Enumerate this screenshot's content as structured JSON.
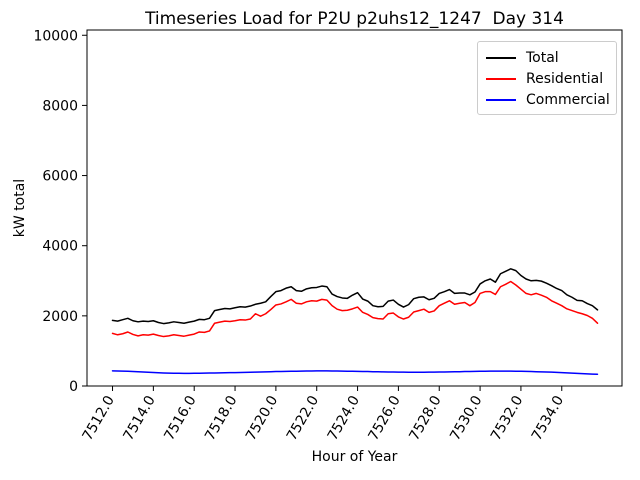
{
  "figure": {
    "title": "Timeseries Load for P2U p2uhs12_1247  Day 314"
  },
  "chart_data": {
    "type": "line",
    "title": "Timeseries Load for P2U p2uhs12_1247  Day 314",
    "xlabel": "Hour of Year",
    "ylabel": "kW total",
    "xlim": [
      7510.75,
      7536.95
    ],
    "ylim": [
      0,
      10150
    ],
    "x_ticks": [
      7512,
      7514,
      7516,
      7518,
      7520,
      7522,
      7524,
      7526,
      7528,
      7530,
      7532,
      7534
    ],
    "x_tick_labels": [
      "7512.0",
      "7514.0",
      "7516.0",
      "7518.0",
      "7520.0",
      "7522.0",
      "7524.0",
      "7526.0",
      "7528.0",
      "7530.0",
      "7532.0",
      "7534.0"
    ],
    "y_ticks": [
      0,
      2000,
      4000,
      6000,
      8000,
      10000
    ],
    "y_tick_labels": [
      "0",
      "2000",
      "4000",
      "6000",
      "8000",
      "10000"
    ],
    "grid": false,
    "legend_position": "upper right",
    "x_start": 7512.0,
    "x_step": 0.25,
    "x_end": 7535.75,
    "legend": {
      "items": [
        {
          "label": "Total",
          "color": "#000000"
        },
        {
          "label": "Residential",
          "color": "#ff0000"
        },
        {
          "label": "Commercial",
          "color": "#0000ff"
        }
      ]
    },
    "series": [
      {
        "name": "Total",
        "color": "#000000",
        "values": [
          1870,
          1850,
          1890,
          1930,
          1860,
          1830,
          1850,
          1840,
          1860,
          1810,
          1780,
          1800,
          1830,
          1810,
          1790,
          1820,
          1850,
          1900,
          1890,
          1930,
          2150,
          2180,
          2210,
          2200,
          2230,
          2260,
          2250,
          2280,
          2330,
          2360,
          2400,
          2550,
          2690,
          2720,
          2790,
          2830,
          2720,
          2700,
          2770,
          2800,
          2810,
          2850,
          2830,
          2620,
          2550,
          2510,
          2500,
          2590,
          2660,
          2480,
          2420,
          2290,
          2260,
          2270,
          2420,
          2450,
          2330,
          2250,
          2320,
          2490,
          2530,
          2540,
          2460,
          2500,
          2640,
          2690,
          2750,
          2640,
          2650,
          2650,
          2600,
          2680,
          2910,
          3000,
          3050,
          2960,
          3200,
          3270,
          3340,
          3290,
          3150,
          3050,
          3000,
          3010,
          2990,
          2930,
          2860,
          2780,
          2720,
          2600,
          2530,
          2440,
          2430,
          2350,
          2290,
          2170
        ]
      },
      {
        "name": "Residential",
        "color": "#ff0000",
        "values": [
          1500,
          1460,
          1490,
          1540,
          1470,
          1430,
          1460,
          1450,
          1480,
          1440,
          1410,
          1430,
          1460,
          1440,
          1420,
          1450,
          1480,
          1540,
          1530,
          1570,
          1790,
          1820,
          1850,
          1840,
          1860,
          1890,
          1880,
          1910,
          2060,
          1990,
          2060,
          2180,
          2310,
          2340,
          2400,
          2470,
          2360,
          2340,
          2400,
          2430,
          2420,
          2470,
          2450,
          2290,
          2190,
          2150,
          2160,
          2200,
          2250,
          2100,
          2040,
          1950,
          1920,
          1910,
          2060,
          2080,
          1970,
          1910,
          1960,
          2110,
          2150,
          2190,
          2100,
          2140,
          2290,
          2360,
          2430,
          2330,
          2360,
          2380,
          2290,
          2380,
          2640,
          2690,
          2690,
          2610,
          2830,
          2900,
          2980,
          2880,
          2760,
          2640,
          2600,
          2640,
          2590,
          2530,
          2430,
          2360,
          2290,
          2200,
          2150,
          2100,
          2060,
          2010,
          1930,
          1790
        ]
      },
      {
        "name": "Commercial",
        "color": "#0000ff",
        "values": [
          430,
          428,
          425,
          420,
          415,
          408,
          400,
          392,
          385,
          378,
          372,
          368,
          365,
          362,
          360,
          360,
          362,
          365,
          368,
          370,
          372,
          375,
          378,
          380,
          383,
          386,
          390,
          393,
          396,
          400,
          404,
          408,
          412,
          415,
          418,
          420,
          422,
          424,
          426,
          428,
          430,
          430,
          430,
          428,
          426,
          424,
          422,
          420,
          418,
          415,
          412,
          408,
          405,
          402,
          400,
          398,
          396,
          394,
          392,
          392,
          392,
          393,
          394,
          396,
          398,
          400,
          402,
          405,
          408,
          412,
          415,
          418,
          420,
          422,
          423,
          424,
          425,
          425,
          424,
          422,
          420,
          416,
          412,
          408,
          404,
          400,
          394,
          388,
          382,
          375,
          368,
          360,
          352,
          346,
          340,
          335
        ]
      }
    ]
  }
}
